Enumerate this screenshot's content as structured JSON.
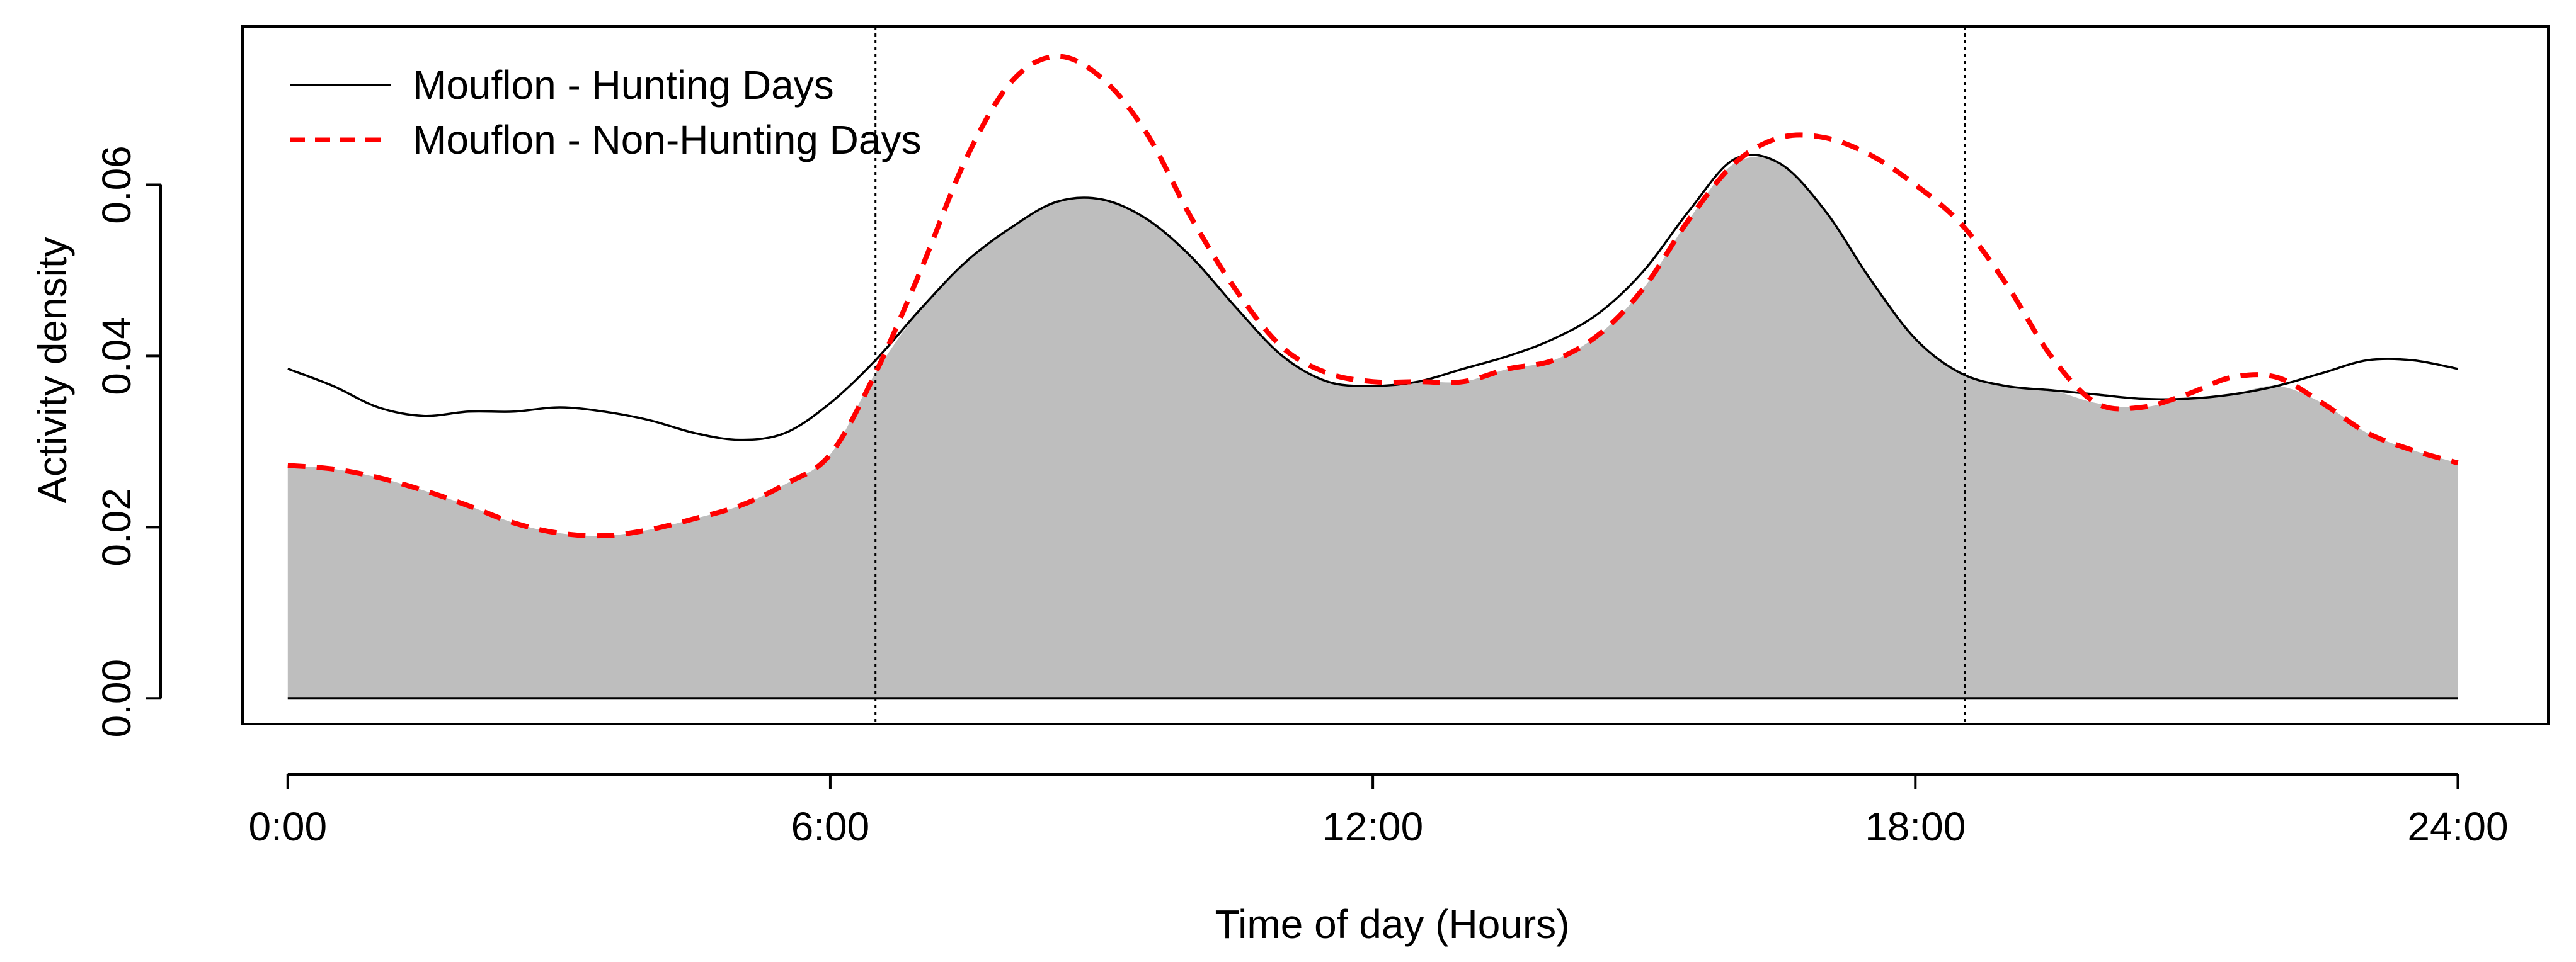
{
  "chart_data": {
    "type": "line",
    "title": "",
    "xlabel": "Time of day (Hours)",
    "ylabel": "Activity density",
    "xlim": [
      -0.5,
      25.0
    ],
    "ylim": [
      -0.003,
      0.0785
    ],
    "x_ticks": [
      0,
      6,
      12,
      18,
      24
    ],
    "x_tick_labels": [
      "0:00",
      "6:00",
      "12:00",
      "18:00",
      "24:00"
    ],
    "y_ticks": [
      0.0,
      0.02,
      0.04,
      0.06
    ],
    "y_tick_labels": [
      "0.00",
      "0.02",
      "0.04",
      "0.06"
    ],
    "reference_lines": [
      {
        "x": 6.5
      },
      {
        "x": 18.55
      }
    ],
    "legend_position": "top-left",
    "series": [
      {
        "name": "Mouflon - Hunting Days",
        "style": "solid",
        "color": "#000000",
        "x": [
          0,
          0.5,
          1,
          1.5,
          2,
          2.5,
          3,
          3.5,
          4,
          4.5,
          5,
          5.5,
          6,
          6.5,
          7,
          7.5,
          8,
          8.5,
          9,
          9.5,
          10,
          10.5,
          11,
          11.5,
          12,
          12.5,
          13,
          13.5,
          14,
          14.5,
          15,
          15.5,
          16,
          16.5,
          17,
          17.5,
          18,
          18.5,
          19,
          19.5,
          20,
          20.5,
          21,
          21.5,
          22,
          22.5,
          23,
          23.5,
          24
        ],
        "y": [
          0.0385,
          0.0365,
          0.034,
          0.033,
          0.0335,
          0.0335,
          0.034,
          0.0335,
          0.0325,
          0.031,
          0.0302,
          0.031,
          0.0345,
          0.0395,
          0.0455,
          0.051,
          0.055,
          0.058,
          0.0583,
          0.056,
          0.0515,
          0.0455,
          0.04,
          0.037,
          0.0365,
          0.037,
          0.0385,
          0.04,
          0.042,
          0.045,
          0.05,
          0.057,
          0.063,
          0.0625,
          0.057,
          0.049,
          0.042,
          0.038,
          0.0365,
          0.036,
          0.0355,
          0.035,
          0.035,
          0.0355,
          0.0365,
          0.038,
          0.0395,
          0.0395,
          0.0385
        ]
      },
      {
        "name": "Mouflon - Non-Hunting Days",
        "style": "dashed",
        "color": "#ff0000",
        "x": [
          0,
          0.5,
          1,
          1.5,
          2,
          2.5,
          3,
          3.5,
          4,
          4.5,
          5,
          5.5,
          6,
          6.5,
          7,
          7.5,
          8,
          8.5,
          9,
          9.5,
          10,
          10.5,
          11,
          11.5,
          12,
          12.5,
          13,
          13.5,
          14,
          14.5,
          15,
          15.5,
          16,
          16.5,
          17,
          17.5,
          18,
          18.5,
          19,
          19.5,
          20,
          20.5,
          21,
          21.5,
          22,
          22.5,
          23,
          23.5,
          24
        ],
        "y": [
          0.0272,
          0.0268,
          0.0258,
          0.0243,
          0.0225,
          0.0205,
          0.0193,
          0.019,
          0.0197,
          0.021,
          0.0225,
          0.025,
          0.0285,
          0.038,
          0.05,
          0.063,
          0.072,
          0.075,
          0.0725,
          0.066,
          0.056,
          0.0475,
          0.041,
          0.038,
          0.037,
          0.037,
          0.037,
          0.0385,
          0.0395,
          0.0425,
          0.048,
          0.056,
          0.0625,
          0.0655,
          0.0655,
          0.0635,
          0.06,
          0.0555,
          0.0485,
          0.04,
          0.0345,
          0.034,
          0.0355,
          0.0375,
          0.0375,
          0.0345,
          0.031,
          0.029,
          0.0275
        ]
      }
    ],
    "overlap_fill": {
      "label": "overlap",
      "color": "#bebebe"
    }
  }
}
